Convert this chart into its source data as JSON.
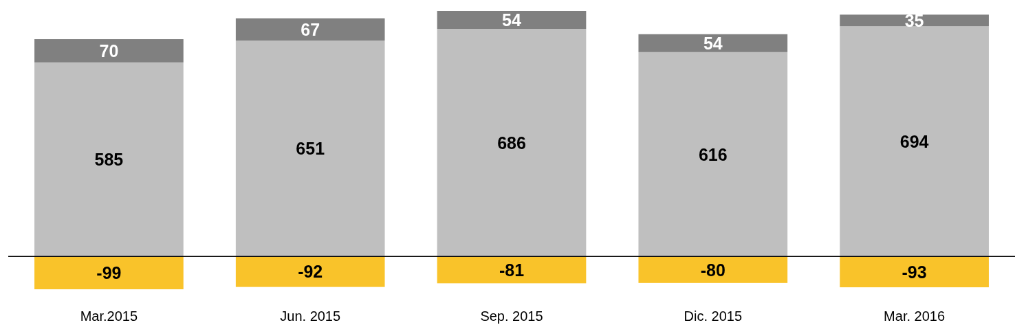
{
  "chart_data": {
    "type": "bar",
    "stacked": true,
    "data_labels": true,
    "categories": [
      "Mar.2015",
      "Jun. 2015",
      "Sep. 2015",
      "Dic. 2015",
      "Mar. 2016"
    ],
    "series": [
      {
        "color": "#bfbfbf",
        "values": [
          585,
          651,
          686,
          616,
          694
        ]
      },
      {
        "color": "#808080",
        "values": [
          70,
          67,
          54,
          54,
          35
        ]
      },
      {
        "color": "#f9c32a",
        "values": [
          -99,
          -92,
          -81,
          -80,
          -93
        ]
      }
    ]
  }
}
